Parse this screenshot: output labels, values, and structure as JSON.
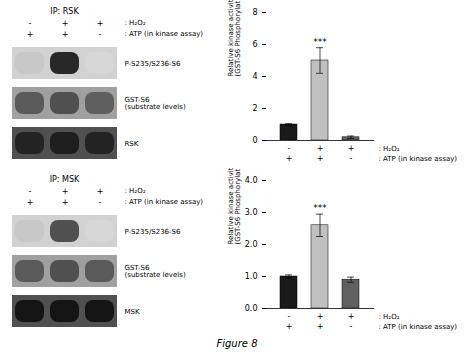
{
  "chart_data": [
    {
      "type": "blot",
      "title": "IP: RSK",
      "condition_rows": [
        {
          "label": ": H₂O₂",
          "values": [
            "-",
            "+",
            "+"
          ]
        },
        {
          "label": ": ATP (in kinase assay)",
          "values": [
            "+",
            "+",
            "-"
          ]
        }
      ],
      "rows": [
        {
          "label": "P-S235/S236-S6",
          "background": 210,
          "bands": [
            200,
            40,
            215
          ]
        },
        {
          "label": "GST-S6\n(substrate levels)",
          "background": 160,
          "bands": [
            90,
            80,
            95
          ]
        },
        {
          "label": "RSK",
          "background": 80,
          "bands": [
            35,
            30,
            35
          ]
        }
      ]
    },
    {
      "type": "bar",
      "ylabel": "Relative kinase activity\n(GST-S6 Phosphorylation)",
      "categories": [
        null,
        null,
        null
      ],
      "values": [
        1.0,
        5.0,
        0.2
      ],
      "errors": [
        0.05,
        0.8,
        0.08
      ],
      "colors": [
        "#1a1a1a",
        "#c0c0c0",
        "#606060"
      ],
      "ylim": [
        0,
        8
      ],
      "yticks": [
        0,
        2,
        4,
        6,
        8
      ],
      "condition_rows": [
        {
          "label": ": H₂O₂",
          "values": [
            "-",
            "+",
            "+"
          ]
        },
        {
          "label": ": ATP (in kinase assay)",
          "values": [
            "+",
            "+",
            "-"
          ]
        }
      ],
      "annotations": [
        {
          "index": 1,
          "text": "***"
        }
      ]
    },
    {
      "type": "blot",
      "title": "IP: MSK",
      "condition_rows": [
        {
          "label": ": H₂O₂",
          "values": [
            "-",
            "+",
            "+"
          ]
        },
        {
          "label": ": ATP (in kinase assay)",
          "values": [
            "+",
            "+",
            "-"
          ]
        }
      ],
      "rows": [
        {
          "label": "P-S235/S236-S6",
          "background": 210,
          "bands": [
            200,
            80,
            215
          ]
        },
        {
          "label": "GST-S6\n(substrate levels)",
          "background": 160,
          "bands": [
            90,
            80,
            90
          ]
        },
        {
          "label": "MSK",
          "background": 80,
          "bands": [
            20,
            20,
            20
          ]
        }
      ]
    },
    {
      "type": "bar",
      "ylabel": "Relative kinase activity\n(GST-S6 Phosphorylation)",
      "categories": [
        null,
        null,
        null
      ],
      "values": [
        1.0,
        2.6,
        0.9
      ],
      "errors": [
        0.05,
        0.35,
        0.08
      ],
      "colors": [
        "#1a1a1a",
        "#c0c0c0",
        "#606060"
      ],
      "ylim": [
        0,
        4
      ],
      "yticks": [
        0,
        1,
        2,
        3,
        4
      ],
      "condition_rows": [
        {
          "label": ": H₂O₂",
          "values": [
            "-",
            "+",
            "+"
          ]
        },
        {
          "label": ": ATP (in kinase assay)",
          "values": [
            "+",
            "+",
            "-"
          ]
        }
      ],
      "annotations": [
        {
          "index": 1,
          "text": "***"
        }
      ],
      "caption": "Figure 8"
    }
  ]
}
